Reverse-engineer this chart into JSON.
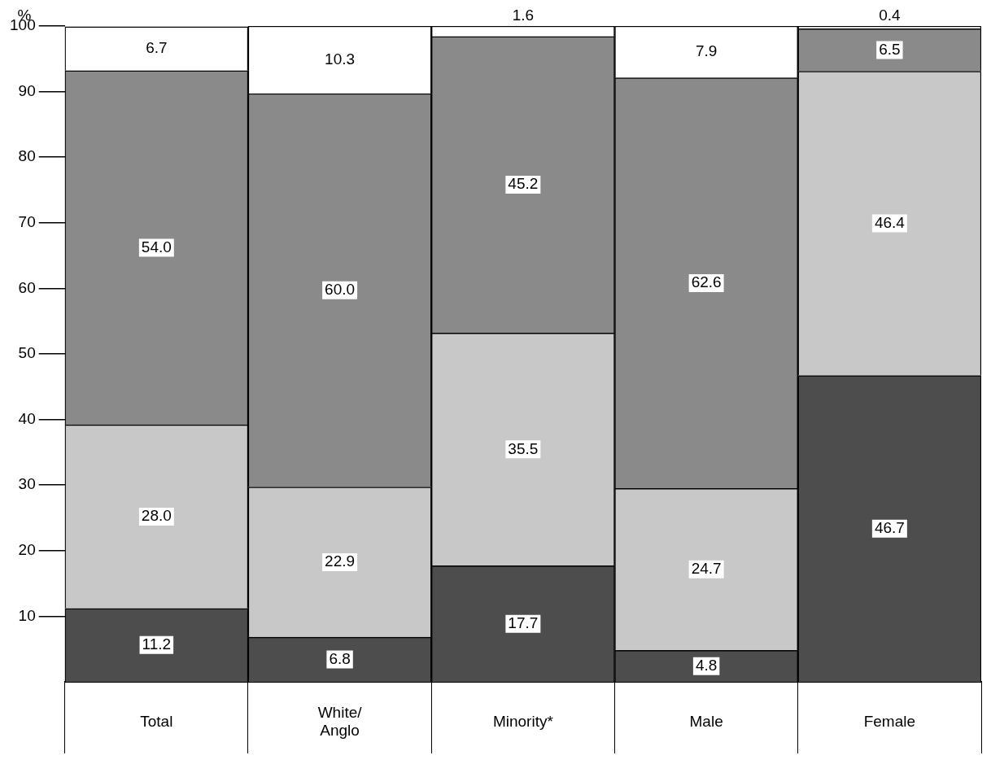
{
  "chart_data": {
    "type": "bar",
    "stacked": true,
    "ylabel": "%",
    "categories": [
      "Total",
      "White/\nAnglo",
      "Minority*",
      "Male",
      "Female"
    ],
    "series": [
      {
        "color": "#4d4d4d",
        "values": [
          11.2,
          6.8,
          17.7,
          4.8,
          46.7
        ],
        "value_labels": [
          "11.2",
          "6.8",
          "17.7",
          "4.8",
          "46.7"
        ]
      },
      {
        "color": "#c8c8c8",
        "values": [
          28.0,
          22.9,
          35.5,
          24.7,
          46.4
        ],
        "value_labels": [
          "28.0",
          "22.9",
          "35.5",
          "24.7",
          "46.4"
        ]
      },
      {
        "color": "#8a8a8a",
        "values": [
          54.0,
          60.0,
          45.2,
          62.6,
          6.5
        ],
        "value_labels": [
          "54.0",
          "60.0",
          "45.2",
          "62.6",
          "6.5"
        ]
      },
      {
        "color": "#ffffff",
        "values": [
          6.7,
          10.3,
          1.6,
          7.9,
          0.4
        ],
        "value_labels": [
          "6.7",
          "10.3",
          "1.6",
          "7.9",
          "0.4"
        ]
      }
    ],
    "ylim": [
      0,
      100
    ],
    "yticks": [
      10,
      20,
      30,
      40,
      50,
      60,
      70,
      80,
      90,
      100
    ],
    "grid": false,
    "legend": false
  }
}
